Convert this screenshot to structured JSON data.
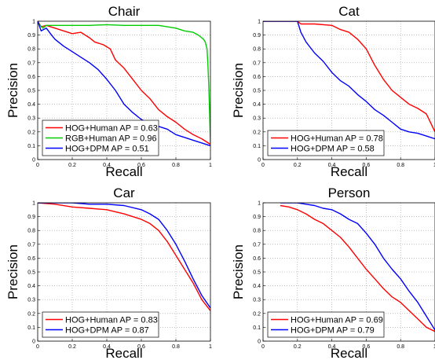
{
  "chart_data": [
    {
      "type": "line",
      "title": "Chair",
      "xlabel": "Recall",
      "ylabel": "Precision",
      "xlim": [
        0,
        1
      ],
      "ylim": [
        0,
        1
      ],
      "xticks": [
        "0",
        "0.2",
        "0.4",
        "0.6",
        "0.8",
        "1"
      ],
      "yticks": [
        "0",
        "0.1",
        "0.2",
        "0.3",
        "0.4",
        "0.5",
        "0.6",
        "0.7",
        "0.8",
        "0.9",
        "1"
      ],
      "grid": true,
      "legend_position": "bottom-left",
      "series": [
        {
          "name": "HOG+Human AP = 0.63",
          "color": "#ff0000",
          "x": [
            0,
            0.02,
            0.05,
            0.1,
            0.15,
            0.2,
            0.25,
            0.3,
            0.33,
            0.38,
            0.42,
            0.45,
            0.5,
            0.55,
            0.6,
            0.65,
            0.7,
            0.75,
            0.8,
            0.85,
            0.9,
            0.95,
            1.0
          ],
          "y": [
            1.0,
            0.96,
            0.97,
            0.95,
            0.93,
            0.91,
            0.92,
            0.88,
            0.85,
            0.83,
            0.8,
            0.72,
            0.66,
            0.58,
            0.5,
            0.44,
            0.36,
            0.31,
            0.27,
            0.22,
            0.18,
            0.15,
            0.11
          ]
        },
        {
          "name": "RGB+Human AP = 0.96",
          "color": "#00cc00",
          "x": [
            0,
            0.03,
            0.05,
            0.1,
            0.2,
            0.3,
            0.4,
            0.5,
            0.6,
            0.7,
            0.8,
            0.85,
            0.9,
            0.93,
            0.96,
            0.97,
            0.98,
            0.985,
            0.99,
            0.995,
            1.0
          ],
          "y": [
            0.99,
            0.95,
            0.97,
            0.97,
            0.97,
            0.97,
            0.975,
            0.97,
            0.97,
            0.97,
            0.95,
            0.93,
            0.92,
            0.9,
            0.87,
            0.85,
            0.8,
            0.7,
            0.55,
            0.35,
            0.11
          ]
        },
        {
          "name": "HOG+DPM AP = 0.51",
          "color": "#0000ff",
          "x": [
            0,
            0.02,
            0.05,
            0.08,
            0.1,
            0.15,
            0.2,
            0.25,
            0.3,
            0.35,
            0.4,
            0.45,
            0.5,
            0.55,
            0.6,
            0.65,
            0.7,
            0.75,
            0.8,
            0.85,
            0.9,
            0.95,
            1.0
          ],
          "y": [
            1.0,
            0.93,
            0.95,
            0.9,
            0.87,
            0.82,
            0.78,
            0.74,
            0.7,
            0.65,
            0.58,
            0.5,
            0.4,
            0.34,
            0.29,
            0.26,
            0.24,
            0.22,
            0.18,
            0.16,
            0.14,
            0.12,
            0.1
          ]
        }
      ]
    },
    {
      "type": "line",
      "title": "Cat",
      "xlabel": "Recall",
      "ylabel": "Precision",
      "xlim": [
        0,
        1
      ],
      "ylim": [
        0,
        1
      ],
      "xticks": [
        "0",
        "0.2",
        "0.4",
        "0.6",
        "0.8",
        "1"
      ],
      "yticks": [
        "0",
        "0.1",
        "0.2",
        "0.3",
        "0.4",
        "0.5",
        "0.6",
        "0.7",
        "0.8",
        "0.9",
        "1"
      ],
      "grid": true,
      "legend_position": "bottom-left",
      "series": [
        {
          "name": "HOG+Human AP = 0.78",
          "color": "#ff0000",
          "x": [
            0,
            0.1,
            0.2,
            0.22,
            0.3,
            0.4,
            0.45,
            0.5,
            0.55,
            0.6,
            0.65,
            0.7,
            0.75,
            0.8,
            0.85,
            0.9,
            0.95,
            1.0
          ],
          "y": [
            1.0,
            1.0,
            1.0,
            0.98,
            0.98,
            0.97,
            0.94,
            0.92,
            0.87,
            0.8,
            0.68,
            0.58,
            0.5,
            0.45,
            0.4,
            0.37,
            0.33,
            0.2
          ]
        },
        {
          "name": "HOG+DPM AP = 0.58",
          "color": "#0000ff",
          "x": [
            0,
            0.1,
            0.2,
            0.22,
            0.25,
            0.3,
            0.35,
            0.4,
            0.45,
            0.5,
            0.55,
            0.6,
            0.65,
            0.7,
            0.75,
            0.8,
            0.85,
            0.9,
            0.95,
            1.0
          ],
          "y": [
            1.0,
            1.0,
            1.0,
            0.92,
            0.85,
            0.77,
            0.71,
            0.63,
            0.57,
            0.53,
            0.47,
            0.42,
            0.36,
            0.32,
            0.27,
            0.22,
            0.2,
            0.19,
            0.17,
            0.15
          ]
        }
      ]
    },
    {
      "type": "line",
      "title": "Car",
      "xlabel": "Recall",
      "ylabel": "Precision",
      "xlim": [
        0,
        1
      ],
      "ylim": [
        0,
        1
      ],
      "xticks": [
        "0",
        "0.2",
        "0.4",
        "0.6",
        "0.8",
        "1"
      ],
      "yticks": [
        "0",
        "0.1",
        "0.2",
        "0.3",
        "0.4",
        "0.5",
        "0.6",
        "0.7",
        "0.8",
        "0.9",
        "1"
      ],
      "grid": true,
      "legend_position": "bottom-left",
      "series": [
        {
          "name": "HOG+Human AP = 0.83",
          "color": "#ff0000",
          "x": [
            0,
            0.1,
            0.2,
            0.3,
            0.4,
            0.5,
            0.6,
            0.65,
            0.7,
            0.75,
            0.8,
            0.85,
            0.9,
            0.95,
            1.0
          ],
          "y": [
            1.0,
            0.99,
            0.97,
            0.96,
            0.95,
            0.92,
            0.88,
            0.85,
            0.8,
            0.72,
            0.62,
            0.52,
            0.42,
            0.3,
            0.22
          ]
        },
        {
          "name": "HOG+DPM AP = 0.87",
          "color": "#0000ff",
          "x": [
            0,
            0.1,
            0.2,
            0.3,
            0.4,
            0.5,
            0.6,
            0.65,
            0.7,
            0.75,
            0.8,
            0.85,
            0.9,
            0.95,
            1.0
          ],
          "y": [
            1.0,
            1.0,
            1.0,
            0.99,
            0.99,
            0.98,
            0.95,
            0.92,
            0.88,
            0.8,
            0.7,
            0.58,
            0.45,
            0.33,
            0.24
          ]
        }
      ]
    },
    {
      "type": "line",
      "title": "Person",
      "xlabel": "Recall",
      "ylabel": "Precision",
      "xlim": [
        0,
        1
      ],
      "ylim": [
        0,
        1
      ],
      "xticks": [
        "0",
        "0.2",
        "0.4",
        "0.6",
        "0.8",
        "1"
      ],
      "yticks": [
        "0",
        "0.1",
        "0.2",
        "0.3",
        "0.4",
        "0.5",
        "0.6",
        "0.7",
        "0.8",
        "0.9",
        "1"
      ],
      "grid": true,
      "legend_position": "bottom-left",
      "series": [
        {
          "name": "HOG+Human AP = 0.69",
          "color": "#ff0000",
          "x": [
            0.1,
            0.15,
            0.2,
            0.25,
            0.3,
            0.35,
            0.4,
            0.45,
            0.5,
            0.55,
            0.6,
            0.65,
            0.7,
            0.75,
            0.8,
            0.85,
            0.9,
            0.95,
            1.0
          ],
          "y": [
            0.98,
            0.97,
            0.95,
            0.92,
            0.88,
            0.85,
            0.8,
            0.75,
            0.68,
            0.6,
            0.52,
            0.45,
            0.38,
            0.32,
            0.28,
            0.22,
            0.16,
            0.1,
            0.07
          ]
        },
        {
          "name": "HOG+DPM AP = 0.79",
          "color": "#0000ff",
          "x": [
            0.1,
            0.2,
            0.25,
            0.3,
            0.35,
            0.4,
            0.45,
            0.5,
            0.55,
            0.6,
            0.65,
            0.7,
            0.75,
            0.8,
            0.85,
            0.9,
            0.95,
            1.0
          ],
          "y": [
            1.0,
            1.0,
            0.99,
            0.98,
            0.96,
            0.95,
            0.92,
            0.88,
            0.85,
            0.78,
            0.7,
            0.6,
            0.52,
            0.45,
            0.36,
            0.28,
            0.18,
            0.08
          ]
        }
      ]
    }
  ]
}
